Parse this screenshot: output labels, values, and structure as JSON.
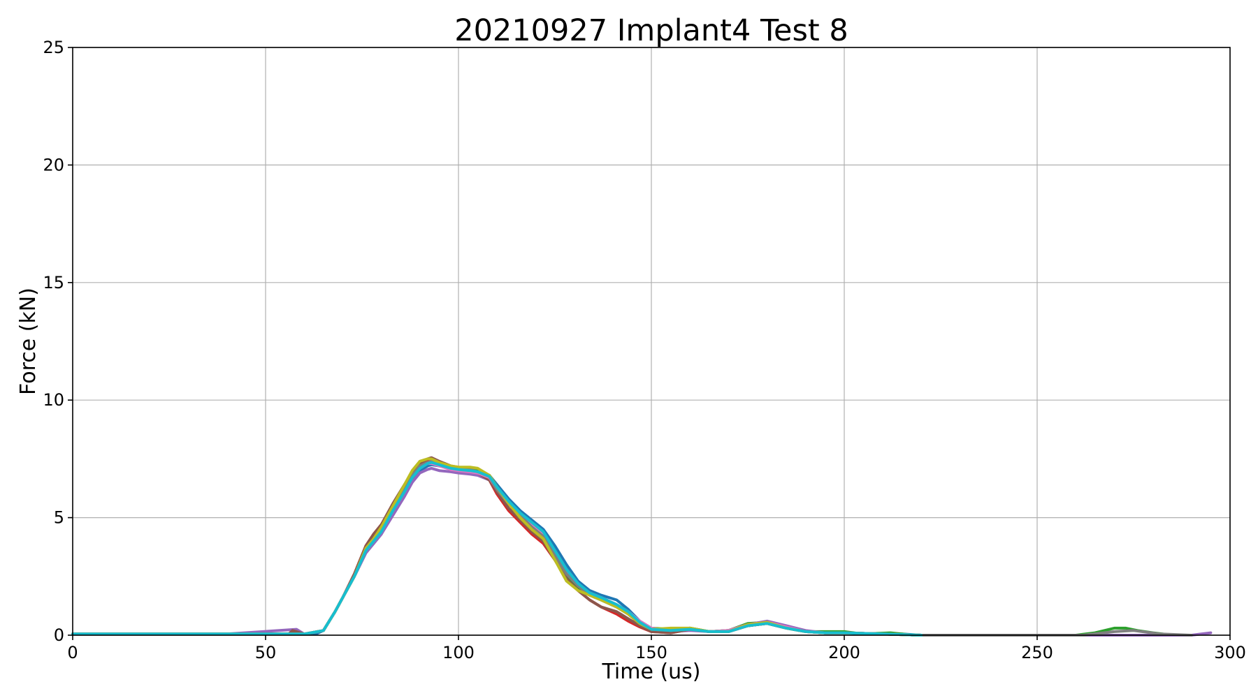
{
  "chart_data": {
    "type": "line",
    "title": "20210927 Implant4 Test 8",
    "xlabel": "Time (us)",
    "ylabel": "Force (kN)",
    "xlim": [
      0,
      300
    ],
    "ylim": [
      0,
      25
    ],
    "xticks": [
      0,
      50,
      100,
      150,
      200,
      250,
      300
    ],
    "yticks": [
      0,
      5,
      10,
      15,
      20,
      25
    ],
    "grid": true,
    "legend": "none",
    "series": [
      {
        "color": "#1f77b4",
        "x": [
          0,
          10,
          20,
          30,
          40,
          50,
          60,
          63,
          65,
          68,
          70,
          73,
          76,
          78,
          80,
          83,
          86,
          88,
          90,
          92,
          93,
          95,
          98,
          100,
          103,
          105,
          108,
          110,
          113,
          116,
          119,
          122,
          125,
          128,
          131,
          134,
          137,
          141,
          144,
          147,
          150,
          153,
          156,
          159,
          162,
          165,
          170,
          175,
          180,
          185,
          190,
          195,
          200,
          205,
          210,
          215,
          220,
          225
        ],
        "y": [
          0.05,
          0.05,
          0.05,
          0.05,
          0.05,
          0.05,
          0.05,
          0.05,
          0.2,
          1.0,
          1.6,
          2.5,
          3.5,
          3.9,
          4.3,
          5.2,
          6.0,
          6.6,
          7.0,
          7.2,
          7.25,
          7.2,
          7.1,
          7.05,
          7.05,
          7.0,
          6.8,
          6.4,
          5.8,
          5.3,
          4.9,
          4.5,
          3.8,
          3.0,
          2.3,
          1.9,
          1.7,
          1.5,
          1.1,
          0.6,
          0.3,
          0.2,
          0.2,
          0.25,
          0.2,
          0.15,
          0.2,
          0.4,
          0.5,
          0.35,
          0.15,
          0.1,
          0.1,
          0.05,
          0.05,
          0.05,
          0.0,
          0.0
        ]
      },
      {
        "color": "#ff7f0e",
        "x": [
          0,
          20,
          40,
          60,
          65,
          68,
          70,
          73,
          76,
          78,
          80,
          83,
          86,
          88,
          90,
          92,
          93,
          95,
          98,
          100,
          103,
          105,
          108,
          110,
          113,
          116,
          119,
          122,
          125,
          128,
          131,
          134,
          137,
          141,
          144,
          147,
          150,
          155,
          160,
          165,
          170,
          175,
          180,
          185,
          190,
          195,
          200,
          210,
          220
        ],
        "y": [
          0.05,
          0.05,
          0.05,
          0.05,
          0.2,
          1.0,
          1.6,
          2.5,
          3.6,
          4.1,
          4.6,
          5.5,
          6.3,
          6.9,
          7.3,
          7.45,
          7.45,
          7.35,
          7.2,
          7.15,
          7.1,
          7.0,
          6.8,
          6.3,
          5.6,
          5.0,
          4.6,
          4.2,
          3.4,
          2.6,
          2.1,
          1.7,
          1.5,
          1.2,
          0.9,
          0.5,
          0.25,
          0.15,
          0.3,
          0.15,
          0.15,
          0.4,
          0.5,
          0.3,
          0.15,
          0.1,
          0.1,
          0.05,
          0.0
        ]
      },
      {
        "color": "#2ca02c",
        "x": [
          0,
          20,
          40,
          60,
          65,
          68,
          70,
          73,
          76,
          78,
          80,
          83,
          86,
          88,
          90,
          92,
          93,
          95,
          98,
          100,
          103,
          105,
          108,
          110,
          113,
          116,
          119,
          122,
          125,
          128,
          131,
          134,
          137,
          141,
          144,
          147,
          150,
          155,
          160,
          165,
          170,
          175,
          180,
          185,
          190,
          195,
          200,
          205,
          212,
          218,
          260,
          265,
          270,
          273,
          276,
          280,
          285
        ],
        "y": [
          0.05,
          0.05,
          0.05,
          0.05,
          0.2,
          1.0,
          1.6,
          2.5,
          3.6,
          4.0,
          4.5,
          5.4,
          6.2,
          6.8,
          7.2,
          7.4,
          7.45,
          7.3,
          7.15,
          7.1,
          7.05,
          7.0,
          6.8,
          6.3,
          5.6,
          5.0,
          4.5,
          4.1,
          3.3,
          2.5,
          2.0,
          1.7,
          1.5,
          1.2,
          0.9,
          0.5,
          0.3,
          0.25,
          0.3,
          0.15,
          0.2,
          0.5,
          0.55,
          0.3,
          0.15,
          0.15,
          0.15,
          0.05,
          0.1,
          0.0,
          0.0,
          0.1,
          0.3,
          0.3,
          0.2,
          0.1,
          0.0
        ]
      },
      {
        "color": "#d62728",
        "x": [
          0,
          20,
          40,
          60,
          65,
          68,
          70,
          73,
          76,
          78,
          80,
          83,
          86,
          88,
          90,
          92,
          93,
          95,
          98,
          100,
          103,
          105,
          108,
          110,
          113,
          116,
          119,
          122,
          125,
          128,
          131,
          134,
          137,
          141,
          144,
          147,
          150,
          155,
          160,
          165,
          170,
          175,
          180,
          185,
          190,
          195,
          200,
          210,
          220
        ],
        "y": [
          0.05,
          0.05,
          0.05,
          0.05,
          0.2,
          1.0,
          1.6,
          2.6,
          3.8,
          4.3,
          4.7,
          5.5,
          6.3,
          6.8,
          7.2,
          7.4,
          7.4,
          7.3,
          7.15,
          7.05,
          6.95,
          6.85,
          6.6,
          6.0,
          5.3,
          4.8,
          4.3,
          3.9,
          3.2,
          2.4,
          1.9,
          1.5,
          1.2,
          0.9,
          0.6,
          0.35,
          0.15,
          0.1,
          0.25,
          0.15,
          0.15,
          0.4,
          0.5,
          0.3,
          0.15,
          0.1,
          0.1,
          0.05,
          0.0
        ]
      },
      {
        "color": "#9467bd",
        "x": [
          0,
          20,
          40,
          58,
          60,
          65,
          68,
          70,
          73,
          76,
          78,
          80,
          83,
          86,
          88,
          90,
          92,
          93,
          95,
          98,
          100,
          103,
          105,
          108,
          110,
          113,
          116,
          119,
          122,
          125,
          128,
          131,
          134,
          137,
          141,
          144,
          147,
          150,
          155,
          160,
          165,
          170,
          175,
          180,
          185,
          190,
          195,
          200,
          210,
          220,
          290,
          295
        ],
        "y": [
          0.05,
          0.05,
          0.05,
          0.25,
          0.05,
          0.2,
          1.0,
          1.6,
          2.5,
          3.5,
          3.9,
          4.3,
          5.1,
          5.9,
          6.5,
          6.9,
          7.05,
          7.1,
          7.0,
          6.95,
          6.9,
          6.85,
          6.8,
          6.6,
          6.2,
          5.6,
          5.1,
          4.7,
          4.3,
          3.6,
          2.8,
          2.2,
          1.8,
          1.6,
          1.3,
          1.0,
          0.6,
          0.3,
          0.15,
          0.2,
          0.15,
          0.2,
          0.45,
          0.6,
          0.4,
          0.2,
          0.1,
          0.1,
          0.05,
          0.0,
          0.0,
          0.1
        ]
      },
      {
        "color": "#8c564b",
        "x": [
          0,
          20,
          40,
          56,
          57,
          60,
          65,
          68,
          70,
          73,
          76,
          78,
          80,
          83,
          86,
          88,
          90,
          92,
          93,
          95,
          98,
          100,
          103,
          105,
          108,
          110,
          113,
          116,
          119,
          122,
          125,
          128,
          131,
          134,
          137,
          141,
          144,
          147,
          150,
          155,
          160,
          165,
          170,
          175,
          180,
          185,
          190,
          195,
          200,
          210,
          220
        ],
        "y": [
          0.05,
          0.05,
          0.05,
          0.05,
          0.2,
          0.05,
          0.2,
          1.0,
          1.6,
          2.6,
          3.8,
          4.3,
          4.7,
          5.6,
          6.4,
          6.9,
          7.3,
          7.5,
          7.55,
          7.4,
          7.2,
          7.1,
          7.0,
          6.9,
          6.6,
          6.1,
          5.4,
          4.9,
          4.4,
          4.0,
          3.2,
          2.4,
          1.9,
          1.5,
          1.2,
          1.0,
          0.7,
          0.4,
          0.15,
          0.1,
          0.25,
          0.15,
          0.15,
          0.4,
          0.5,
          0.3,
          0.15,
          0.1,
          0.1,
          0.05,
          0.0
        ]
      },
      {
        "color": "#e377c2",
        "x": [
          0,
          20,
          40,
          60,
          65,
          68,
          70,
          73,
          76,
          78,
          80,
          83,
          86,
          88,
          90,
          92,
          93,
          95,
          98,
          100,
          103,
          105,
          108,
          110,
          113,
          116,
          119,
          122,
          125,
          128,
          131,
          134,
          137,
          141,
          144,
          147,
          150,
          155,
          160,
          165,
          170,
          175,
          180,
          185,
          190,
          195,
          200,
          210,
          220
        ],
        "y": [
          0.05,
          0.05,
          0.05,
          0.05,
          0.2,
          1.0,
          1.6,
          2.5,
          3.6,
          4.0,
          4.4,
          5.3,
          6.1,
          6.7,
          7.1,
          7.3,
          7.3,
          7.2,
          7.05,
          7.0,
          6.95,
          6.9,
          6.7,
          6.2,
          5.6,
          5.1,
          4.7,
          4.3,
          3.5,
          2.7,
          2.1,
          1.8,
          1.6,
          1.3,
          1.0,
          0.6,
          0.3,
          0.2,
          0.25,
          0.15,
          0.2,
          0.45,
          0.55,
          0.35,
          0.15,
          0.1,
          0.1,
          0.05,
          0.0
        ]
      },
      {
        "color": "#7f7f7f",
        "x": [
          0,
          20,
          40,
          60,
          65,
          68,
          70,
          73,
          76,
          78,
          80,
          83,
          86,
          88,
          90,
          92,
          93,
          95,
          98,
          100,
          103,
          105,
          108,
          110,
          113,
          116,
          119,
          122,
          125,
          128,
          131,
          134,
          137,
          141,
          144,
          147,
          150,
          155,
          160,
          165,
          170,
          175,
          180,
          185,
          190,
          195,
          200,
          210,
          220,
          262,
          270,
          275,
          282,
          290
        ],
        "y": [
          0.05,
          0.05,
          0.05,
          0.05,
          0.2,
          1.0,
          1.6,
          2.5,
          3.6,
          4.1,
          4.5,
          5.4,
          6.2,
          6.8,
          7.2,
          7.35,
          7.4,
          7.3,
          7.15,
          7.1,
          7.05,
          6.95,
          6.75,
          6.2,
          5.6,
          5.1,
          4.6,
          4.2,
          3.4,
          2.6,
          2.1,
          1.7,
          1.5,
          1.2,
          0.9,
          0.5,
          0.25,
          0.2,
          0.25,
          0.15,
          0.15,
          0.4,
          0.5,
          0.3,
          0.15,
          0.1,
          0.1,
          0.05,
          0.0,
          0.0,
          0.15,
          0.2,
          0.05,
          0.0
        ]
      },
      {
        "color": "#bcbd22",
        "x": [
          0,
          20,
          40,
          60,
          65,
          68,
          70,
          73,
          76,
          78,
          80,
          83,
          86,
          88,
          90,
          92,
          93,
          95,
          98,
          100,
          103,
          105,
          108,
          110,
          113,
          116,
          119,
          122,
          125,
          128,
          131,
          134,
          137,
          141,
          144,
          147,
          150,
          155,
          160,
          165,
          170,
          175,
          180,
          185,
          190,
          195,
          200,
          210,
          220
        ],
        "y": [
          0.05,
          0.05,
          0.05,
          0.05,
          0.2,
          1.0,
          1.6,
          2.5,
          3.7,
          4.1,
          4.6,
          5.5,
          6.4,
          7.0,
          7.4,
          7.5,
          7.5,
          7.35,
          7.2,
          7.15,
          7.15,
          7.1,
          6.8,
          6.3,
          5.6,
          5.0,
          4.5,
          4.1,
          3.2,
          2.3,
          1.9,
          1.7,
          1.5,
          1.2,
          0.9,
          0.5,
          0.25,
          0.3,
          0.3,
          0.15,
          0.15,
          0.45,
          0.55,
          0.3,
          0.15,
          0.1,
          0.1,
          0.05,
          0.0
        ]
      },
      {
        "color": "#17becf",
        "x": [
          0,
          20,
          40,
          60,
          65,
          68,
          70,
          73,
          76,
          78,
          80,
          83,
          86,
          88,
          90,
          92,
          93,
          95,
          98,
          100,
          103,
          105,
          108,
          110,
          113,
          116,
          119,
          122,
          125,
          128,
          131,
          134,
          137,
          141,
          144,
          147,
          150,
          155,
          160,
          165,
          170,
          175,
          180,
          185,
          190,
          195,
          200,
          210,
          220
        ],
        "y": [
          0.05,
          0.05,
          0.05,
          0.05,
          0.2,
          1.0,
          1.6,
          2.5,
          3.6,
          4.0,
          4.4,
          5.3,
          6.1,
          6.7,
          7.1,
          7.3,
          7.35,
          7.25,
          7.1,
          7.05,
          7.0,
          6.95,
          6.75,
          6.3,
          5.7,
          5.2,
          4.8,
          4.4,
          3.6,
          2.8,
          2.2,
          1.8,
          1.6,
          1.3,
          1.0,
          0.55,
          0.25,
          0.2,
          0.25,
          0.15,
          0.15,
          0.4,
          0.5,
          0.3,
          0.15,
          0.1,
          0.1,
          0.05,
          0.0
        ]
      }
    ]
  }
}
